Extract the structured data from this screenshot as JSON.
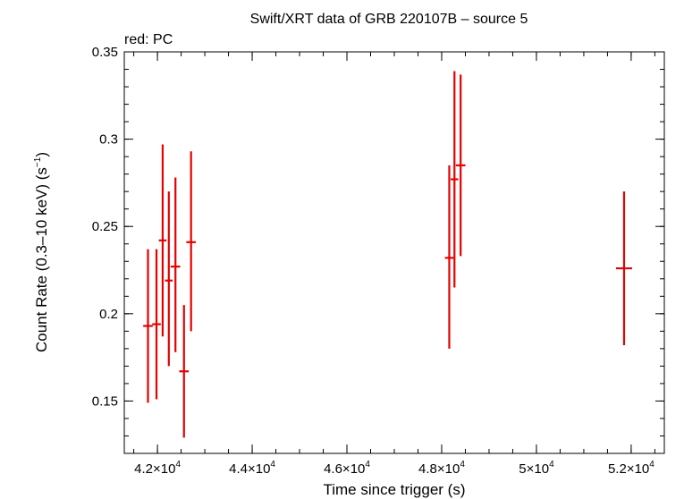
{
  "chart_data": {
    "type": "scatter",
    "title": "Swift/XRT data of GRB 220107B – source 5",
    "subtitle": "red: PC",
    "xlabel": "Time since trigger (s)",
    "ylabel_main": "Count Rate (0.3–10 keV) (s",
    "ylabel_sup": "−1",
    "ylabel_end": ")",
    "xlim": [
      41300,
      52700
    ],
    "ylim": [
      0.12,
      0.35
    ],
    "x_ticks": [
      {
        "value": 42000,
        "mantissa": "4.2×10",
        "exp": "4"
      },
      {
        "value": 44000,
        "mantissa": "4.4×10",
        "exp": "4"
      },
      {
        "value": 46000,
        "mantissa": "4.6×10",
        "exp": "4"
      },
      {
        "value": 48000,
        "mantissa": "4.8×10",
        "exp": "4"
      },
      {
        "value": 50000,
        "mantissa": "5×10",
        "exp": "4"
      },
      {
        "value": 52000,
        "mantissa": "5.2×10",
        "exp": "4"
      }
    ],
    "x_minor_step": 500,
    "y_ticks": [
      {
        "value": 0.15,
        "label": "0.15"
      },
      {
        "value": 0.2,
        "label": "0.2"
      },
      {
        "value": 0.25,
        "label": "0.25"
      },
      {
        "value": 0.3,
        "label": "0.3"
      },
      {
        "value": 0.35,
        "label": "0.35"
      }
    ],
    "y_minor_step": 0.01,
    "grid": false,
    "series": [
      {
        "color": "#e60000",
        "points": [
          {
            "x": 41800,
            "xerr": 100,
            "y": 0.193,
            "ylo": 0.149,
            "yhi": 0.237
          },
          {
            "x": 41980,
            "xerr": 90,
            "y": 0.194,
            "ylo": 0.151,
            "yhi": 0.237
          },
          {
            "x": 42110,
            "xerr": 80,
            "y": 0.242,
            "ylo": 0.187,
            "yhi": 0.297
          },
          {
            "x": 42240,
            "xerr": 80,
            "y": 0.219,
            "ylo": 0.17,
            "yhi": 0.27
          },
          {
            "x": 42380,
            "xerr": 100,
            "y": 0.227,
            "ylo": 0.178,
            "yhi": 0.278
          },
          {
            "x": 42560,
            "xerr": 100,
            "y": 0.167,
            "ylo": 0.129,
            "yhi": 0.205
          },
          {
            "x": 42710,
            "xerr": 100,
            "y": 0.241,
            "ylo": 0.19,
            "yhi": 0.293
          },
          {
            "x": 48160,
            "xerr": 90,
            "y": 0.232,
            "ylo": 0.18,
            "yhi": 0.285
          },
          {
            "x": 48270,
            "xerr": 80,
            "y": 0.277,
            "ylo": 0.215,
            "yhi": 0.339
          },
          {
            "x": 48400,
            "xerr": 100,
            "y": 0.285,
            "ylo": 0.233,
            "yhi": 0.337
          },
          {
            "x": 51850,
            "xerr": 170,
            "y": 0.226,
            "ylo": 0.182,
            "yhi": 0.27
          }
        ]
      }
    ]
  }
}
